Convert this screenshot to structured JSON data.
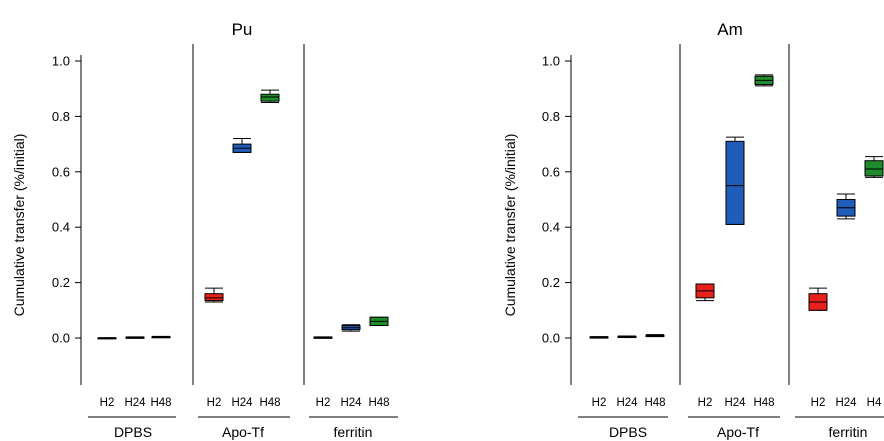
{
  "chart_data": [
    {
      "type": "box",
      "title": "Pu",
      "ylabel": "Cumulative transfer (%/initial)",
      "ylim": [
        -0.17,
        1.0
      ],
      "yticks": [
        0.0,
        0.2,
        0.4,
        0.6,
        0.8,
        1.0
      ],
      "ytick_labels": [
        "0.0",
        "0.2",
        "0.4",
        "0.6",
        "0.8",
        "1.0"
      ],
      "grid": false,
      "groups": [
        {
          "name": "DPBS",
          "categories": [
            "H2",
            "H24",
            "H48"
          ],
          "boxes": [
            {
              "label": "H2",
              "min": 0.0,
              "q1": 0.0,
              "median": 0.0,
              "q3": 0.001,
              "max": 0.001,
              "color": "#000000"
            },
            {
              "label": "H24",
              "min": 0.001,
              "q1": 0.001,
              "median": 0.002,
              "q3": 0.003,
              "max": 0.004,
              "color": "#000000"
            },
            {
              "label": "H48",
              "min": 0.002,
              "q1": 0.003,
              "median": 0.004,
              "q3": 0.005,
              "max": 0.006,
              "color": "#000000"
            }
          ]
        },
        {
          "name": "Apo-Tf",
          "categories": [
            "H2",
            "H24",
            "H48"
          ],
          "boxes": [
            {
              "label": "H2",
              "min": 0.13,
              "q1": 0.135,
              "median": 0.145,
              "q3": 0.16,
              "max": 0.18,
              "color": "#e8211d"
            },
            {
              "label": "H24",
              "min": 0.67,
              "q1": 0.67,
              "median": 0.685,
              "q3": 0.7,
              "max": 0.72,
              "color": "#1f5db8"
            },
            {
              "label": "H48",
              "min": 0.85,
              "q1": 0.855,
              "median": 0.87,
              "q3": 0.88,
              "max": 0.895,
              "color": "#1e8c2c"
            }
          ]
        },
        {
          "name": "ferritin",
          "categories": [
            "H2",
            "H24",
            "H48"
          ],
          "boxes": [
            {
              "label": "H2",
              "min": 0.0,
              "q1": 0.001,
              "median": 0.002,
              "q3": 0.003,
              "max": 0.004,
              "color": "#000000"
            },
            {
              "label": "H24",
              "min": 0.025,
              "q1": 0.03,
              "median": 0.037,
              "q3": 0.045,
              "max": 0.048,
              "color": "#1f5db8"
            },
            {
              "label": "H48",
              "min": 0.045,
              "q1": 0.045,
              "median": 0.06,
              "q3": 0.075,
              "max": 0.075,
              "color": "#1e8c2c"
            }
          ]
        }
      ]
    },
    {
      "type": "box",
      "title": "Am",
      "ylabel": "Cumulative transfer (%/initial)",
      "ylim": [
        -0.17,
        1.0
      ],
      "yticks": [
        0.0,
        0.2,
        0.4,
        0.6,
        0.8,
        1.0
      ],
      "ytick_labels": [
        "0.0",
        "0.2",
        "0.4",
        "0.6",
        "0.8",
        "1.0"
      ],
      "grid": false,
      "groups": [
        {
          "name": "DPBS",
          "categories": [
            "H2",
            "H24",
            "H48"
          ],
          "boxes": [
            {
              "label": "H2",
              "min": 0.001,
              "q1": 0.002,
              "median": 0.003,
              "q3": 0.004,
              "max": 0.005,
              "color": "#000000"
            },
            {
              "label": "H24",
              "min": 0.003,
              "q1": 0.004,
              "median": 0.005,
              "q3": 0.006,
              "max": 0.007,
              "color": "#000000"
            },
            {
              "label": "H48",
              "min": 0.005,
              "q1": 0.006,
              "median": 0.008,
              "q3": 0.01,
              "max": 0.012,
              "color": "#000000"
            }
          ]
        },
        {
          "name": "Apo-Tf",
          "categories": [
            "H2",
            "H24",
            "H48"
          ],
          "boxes": [
            {
              "label": "H2",
              "min": 0.135,
              "q1": 0.145,
              "median": 0.17,
              "q3": 0.195,
              "max": 0.195,
              "color": "#e8211d"
            },
            {
              "label": "H24",
              "min": 0.41,
              "q1": 0.41,
              "median": 0.55,
              "q3": 0.71,
              "max": 0.725,
              "color": "#1f5db8"
            },
            {
              "label": "H48",
              "min": 0.91,
              "q1": 0.915,
              "median": 0.93,
              "q3": 0.945,
              "max": 0.95,
              "color": "#1e8c2c"
            }
          ]
        },
        {
          "name": "ferritin",
          "categories": [
            "H2",
            "H24",
            "H4"
          ],
          "boxes": [
            {
              "label": "H2",
              "min": 0.1,
              "q1": 0.1,
              "median": 0.13,
              "q3": 0.16,
              "max": 0.18,
              "color": "#e8211d"
            },
            {
              "label": "H24",
              "min": 0.43,
              "q1": 0.44,
              "median": 0.47,
              "q3": 0.5,
              "max": 0.52,
              "color": "#1f5db8"
            },
            {
              "label": "H4",
              "min": 0.58,
              "q1": 0.585,
              "median": 0.61,
              "q3": 0.64,
              "max": 0.655,
              "color": "#1e8c2c"
            }
          ]
        }
      ]
    }
  ]
}
